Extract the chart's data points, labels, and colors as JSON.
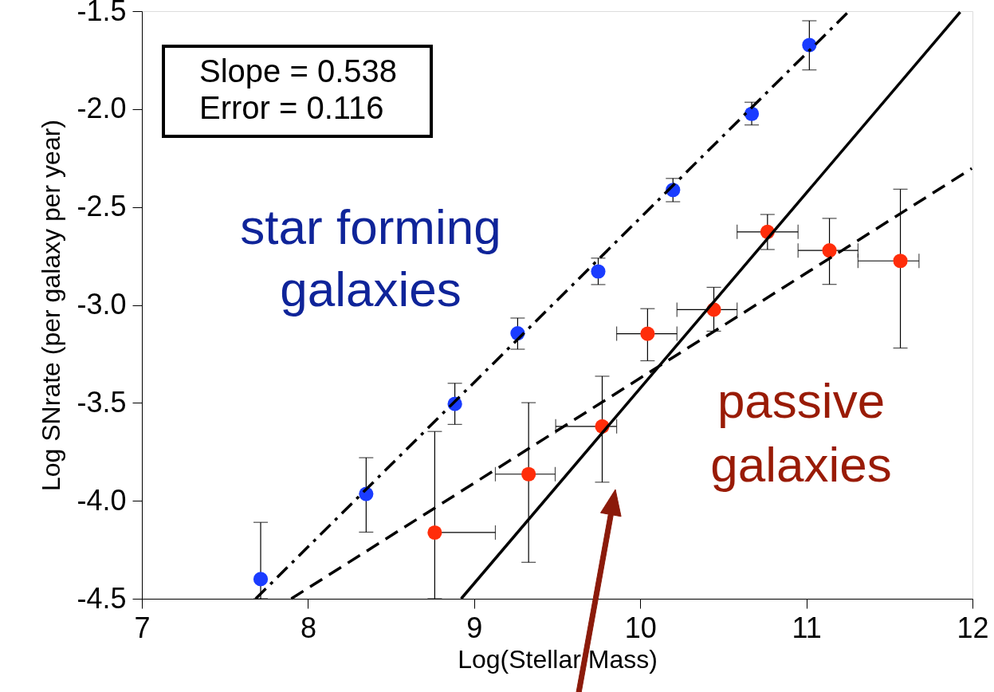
{
  "chart_data": {
    "type": "scatter",
    "xlabel": "Log(Stellar Mass)",
    "ylabel": "Log SNrate (per galaxy per year)",
    "xlim": [
      7,
      12
    ],
    "ylim": [
      -4.5,
      -1.5
    ],
    "xticks": [
      7,
      8,
      9,
      10,
      11,
      12
    ],
    "yticks": [
      -4.5,
      {
        "value": -4.0,
        "label": "-4.0"
      },
      -3.5,
      {
        "value": -3.0,
        "label": "-3.0"
      },
      -2.5,
      {
        "value": -2.0,
        "label": "-2.0"
      },
      -1.5
    ],
    "grid": false,
    "legend": false,
    "marker": "circle",
    "annotations": [
      "Slope = 0.538",
      "Error = 0.116"
    ],
    "series": [
      {
        "name": "star forming galaxies",
        "color": "#1a3cff",
        "x": [
          7.715,
          8.35,
          8.884,
          9.262,
          9.747,
          10.197,
          10.671,
          11.018
        ],
        "values": [
          -4.4,
          -3.965,
          -3.505,
          -3.145,
          -2.829,
          -2.413,
          -2.024,
          -1.673
        ],
        "errors": [
          [
            -4.5,
            -4.11
          ],
          [
            -4.16,
            -3.78
          ],
          [
            -3.61,
            -3.4
          ],
          [
            -3.226,
            -3.067
          ],
          [
            -2.896,
            -2.761
          ],
          [
            -2.473,
            -2.354
          ],
          [
            -2.081,
            -1.965
          ],
          [
            -1.8,
            -1.549
          ]
        ]
      },
      {
        "name": "passive galaxies",
        "color": "#ff2d0a",
        "x": [
          8.763,
          9.328,
          9.771,
          10.044,
          10.443,
          10.766,
          11.139,
          11.566
        ],
        "values": [
          -4.162,
          -3.864,
          -3.62,
          -3.147,
          -3.024,
          -2.627,
          -2.722,
          -2.775
        ],
        "errors": [
          [
            -4.5,
            -3.646
          ],
          [
            -4.314,
            -3.499
          ],
          [
            -3.905,
            -3.364
          ],
          [
            -3.285,
            -3.019
          ],
          [
            -3.134,
            -2.91
          ],
          [
            -2.717,
            -2.538
          ],
          [
            -2.895,
            -2.558
          ],
          [
            -3.22,
            -2.409
          ]
        ],
        "xerrors": [
          [
            8.763,
            9.128
          ],
          [
            9.128,
            9.488
          ],
          [
            9.491,
            9.858
          ],
          [
            9.858,
            10.221
          ],
          [
            10.221,
            10.583
          ],
          [
            10.583,
            10.95
          ],
          [
            10.95,
            11.311
          ],
          [
            11.311,
            11.678
          ]
        ]
      },
      {
        "type": "line",
        "color": "#000000",
        "line_style": "dashdot",
        "marker": "none",
        "x": [
          7.685,
          11.257
        ],
        "values": [
          -4.5,
          -1.5
        ]
      },
      {
        "type": "line",
        "color": "#000000",
        "line_style": "dashed",
        "marker": "none",
        "x": [
          7.899,
          11.996
        ],
        "values": [
          -4.5,
          -2.303
        ]
      },
      {
        "type": "line",
        "color": "#000000",
        "line_style": "solid",
        "marker": "none",
        "x": [
          8.922,
          11.926
        ],
        "values": [
          -4.5,
          -1.505
        ]
      }
    ]
  }
}
